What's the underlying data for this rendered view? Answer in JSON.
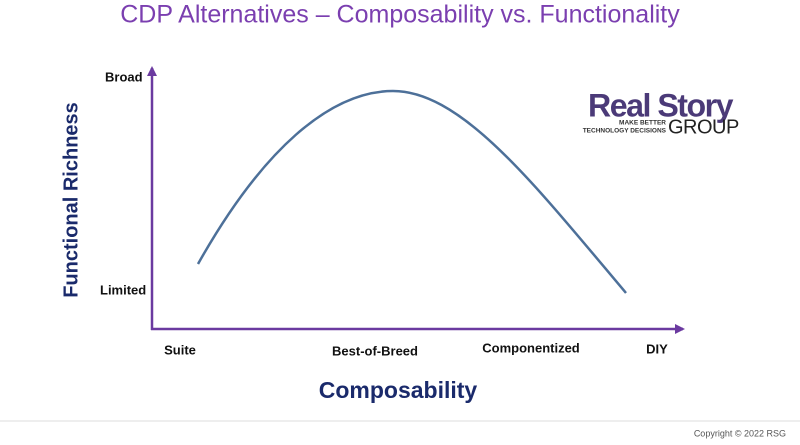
{
  "title": "CDP Alternatives – Composability vs. Functionality",
  "y_axis": {
    "label": "Functional Richness",
    "labels": [
      "Broad",
      "Limited"
    ]
  },
  "x_axis": {
    "label": "Composability",
    "labels": [
      "Suite",
      "Best-of-Breed",
      "Componentized",
      "DIY"
    ]
  },
  "logo": {
    "name": "Real Story",
    "tagline": [
      "MAKE BETTER",
      "TECHNOLOGY DECISIONS"
    ],
    "group": "GROUP"
  },
  "footer": {
    "copyright": "Copyright © 2022 RSG"
  }
}
